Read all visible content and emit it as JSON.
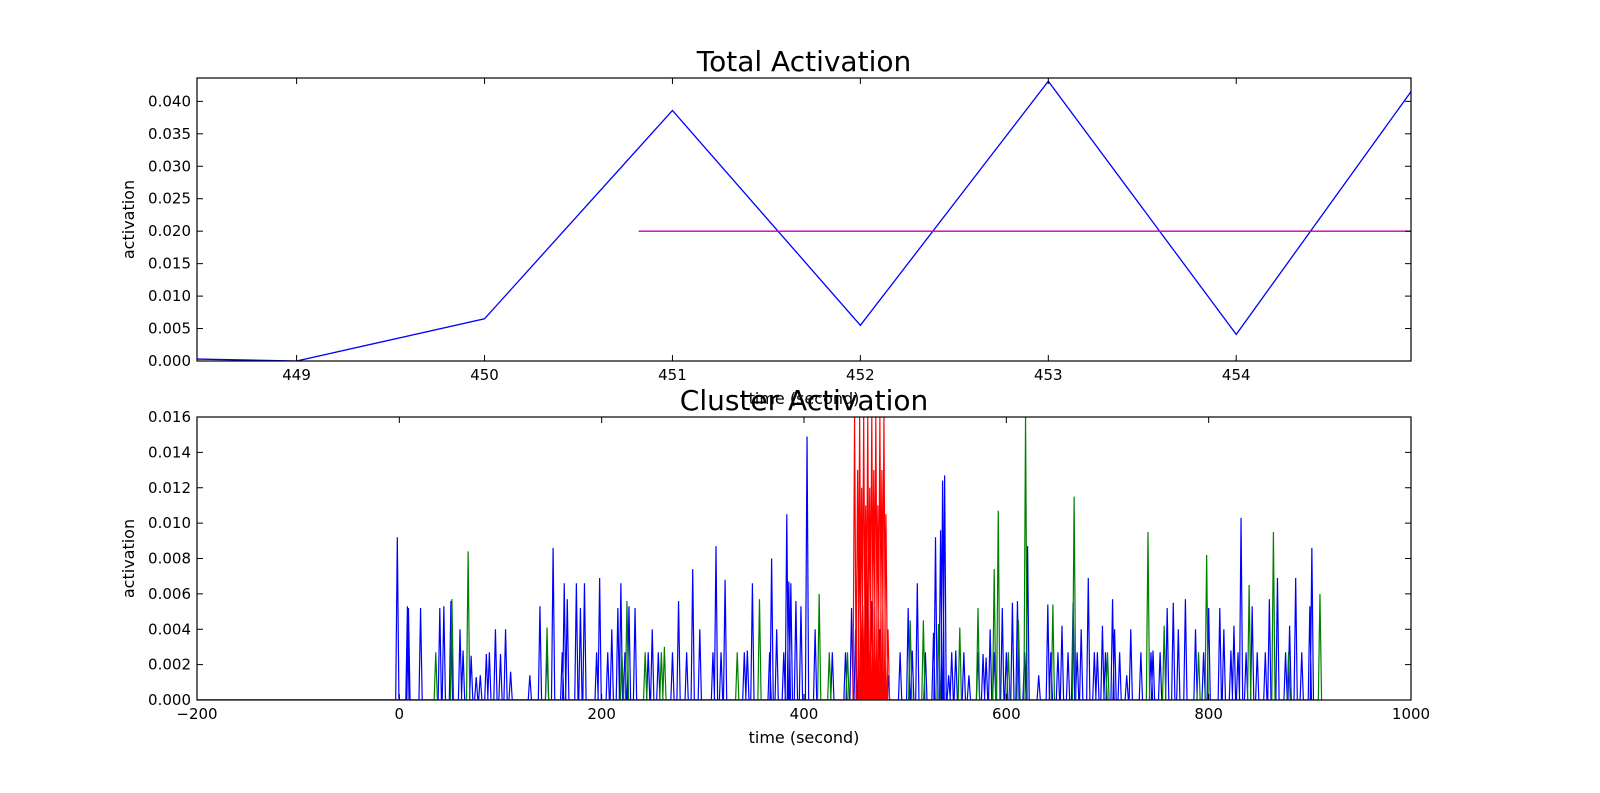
{
  "chart_data": [
    {
      "type": "line",
      "title": "Total Activation",
      "xlabel": "time (second)",
      "ylabel": "activation",
      "xlim": [
        448.47,
        454.93
      ],
      "ylim": [
        0,
        0.0436
      ],
      "x_ticks": [
        449,
        450,
        451,
        452,
        453,
        454
      ],
      "y_ticks": [
        0.0,
        0.005,
        0.01,
        0.015,
        0.02,
        0.025,
        0.03,
        0.035,
        0.04
      ],
      "y_tick_labels": [
        "0.000",
        "0.005",
        "0.010",
        "0.015",
        "0.020",
        "0.025",
        "0.030",
        "0.035",
        "0.040"
      ],
      "grid": false,
      "series": [
        {
          "color": "#0000ff",
          "x": [
            448.47,
            449,
            450,
            451,
            452,
            453,
            454,
            454.93
          ],
          "y": [
            0.0003,
            0.0,
            0.0065,
            0.0386,
            0.0055,
            0.0431,
            0.0041,
            0.0415
          ]
        },
        {
          "color": "#bf00bf",
          "x": [
            450.82,
            454.93
          ],
          "y": [
            0.02,
            0.02
          ]
        }
      ]
    },
    {
      "type": "line",
      "title": "Cluster Activation",
      "xlabel": "time (second)",
      "ylabel": "activation",
      "xlim": [
        -200,
        1000
      ],
      "ylim": [
        0,
        0.016
      ],
      "x_ticks": [
        -200,
        0,
        200,
        400,
        600,
        800,
        1000
      ],
      "x_tick_labels": [
        "−200",
        "0",
        "200",
        "400",
        "600",
        "800",
        "1000"
      ],
      "y_ticks": [
        0.0,
        0.002,
        0.004,
        0.006,
        0.008,
        0.01,
        0.012,
        0.014,
        0.016
      ],
      "y_tick_labels": [
        "0.000",
        "0.002",
        "0.004",
        "0.006",
        "0.008",
        "0.010",
        "0.012",
        "0.014",
        "0.016"
      ],
      "grid": false,
      "series": [
        {
          "color": "#0000ff",
          "spikes": [
            [
              -2,
              0.0092
            ],
            [
              8,
              0.0053
            ],
            [
              9,
              0.0052
            ],
            [
              21,
              0.0052
            ],
            [
              40,
              0.0052
            ],
            [
              44,
              0.0053
            ],
            [
              51,
              0.0056
            ],
            [
              60,
              0.004
            ],
            [
              63,
              0.0028
            ],
            [
              71,
              0.0025
            ],
            [
              76,
              0.0013
            ],
            [
              80,
              0.0014
            ],
            [
              86,
              0.0026
            ],
            [
              89,
              0.0027
            ],
            [
              95,
              0.004
            ],
            [
              100,
              0.0026
            ],
            [
              105,
              0.004
            ],
            [
              110,
              0.0016
            ],
            [
              129,
              0.0014
            ],
            [
              139,
              0.0053
            ],
            [
              146,
              0.0027
            ],
            [
              152,
              0.0086
            ],
            [
              161,
              0.0027
            ],
            [
              163,
              0.0066
            ],
            [
              166,
              0.0057
            ],
            [
              175,
              0.0066
            ],
            [
              179,
              0.0052
            ],
            [
              183,
              0.0066
            ],
            [
              195,
              0.0027
            ],
            [
              198,
              0.0069
            ],
            [
              206,
              0.0027
            ],
            [
              210,
              0.004
            ],
            [
              216,
              0.0052
            ],
            [
              219,
              0.0066
            ],
            [
              223,
              0.0027
            ],
            [
              227,
              0.0053
            ],
            [
              233,
              0.0052
            ],
            [
              246,
              0.0027
            ],
            [
              250,
              0.004
            ],
            [
              256,
              0.0027
            ],
            [
              270,
              0.0027
            ],
            [
              276,
              0.0056
            ],
            [
              284,
              0.0027
            ],
            [
              290,
              0.0074
            ],
            [
              297,
              0.004
            ],
            [
              310,
              0.0027
            ],
            [
              313,
              0.0087
            ],
            [
              318,
              0.0027
            ],
            [
              322,
              0.0068
            ],
            [
              341,
              0.0027
            ],
            [
              344,
              0.0028
            ],
            [
              349,
              0.0066
            ],
            [
              366,
              0.0027
            ],
            [
              368,
              0.008
            ],
            [
              373,
              0.004
            ],
            [
              380,
              0.0027
            ],
            [
              383,
              0.0105
            ],
            [
              385,
              0.0067
            ],
            [
              387,
              0.0066
            ],
            [
              392,
              0.0056
            ],
            [
              397,
              0.0053
            ],
            [
              403,
              0.0149
            ],
            [
              411,
              0.004
            ],
            [
              428,
              0.0027
            ],
            [
              441,
              0.0027
            ],
            [
              447,
              0.0052
            ],
            [
              451,
              0.004
            ],
            [
              455,
              0.0106
            ],
            [
              458,
              0.0053
            ],
            [
              462,
              0.0098
            ],
            [
              467,
              0.0056
            ],
            [
              470,
              0.0027
            ],
            [
              475,
              0.004
            ],
            [
              483,
              0.0014
            ],
            [
              495,
              0.0027
            ],
            [
              503,
              0.0052
            ],
            [
              507,
              0.0028
            ],
            [
              512,
              0.0066
            ],
            [
              520,
              0.0027
            ],
            [
              528,
              0.0038
            ],
            [
              530,
              0.0092
            ],
            [
              535,
              0.0096
            ],
            [
              537,
              0.0124
            ],
            [
              539,
              0.0127
            ],
            [
              543,
              0.0014
            ],
            [
              546,
              0.0027
            ],
            [
              550,
              0.0028
            ],
            [
              558,
              0.0027
            ],
            [
              563,
              0.0014
            ],
            [
              572,
              0.0027
            ],
            [
              577,
              0.0026
            ],
            [
              580,
              0.0024
            ],
            [
              584,
              0.004
            ],
            [
              588,
              0.0027
            ],
            [
              596,
              0.0052
            ],
            [
              600,
              0.0027
            ],
            [
              606,
              0.0055
            ],
            [
              611,
              0.0056
            ],
            [
              618,
              0.0027
            ],
            [
              621,
              0.0087
            ],
            [
              632,
              0.0014
            ],
            [
              641,
              0.0054
            ],
            [
              644,
              0.0027
            ],
            [
              651,
              0.0027
            ],
            [
              655,
              0.0042
            ],
            [
              661,
              0.0027
            ],
            [
              666,
              0.0055
            ],
            [
              670,
              0.0027
            ],
            [
              674,
              0.004
            ],
            [
              681,
              0.0069
            ],
            [
              687,
              0.0027
            ],
            [
              690,
              0.0027
            ],
            [
              695,
              0.0042
            ],
            [
              698,
              0.0027
            ],
            [
              705,
              0.0057
            ],
            [
              707,
              0.004
            ],
            [
              712,
              0.0027
            ],
            [
              719,
              0.0014
            ],
            [
              723,
              0.004
            ],
            [
              733,
              0.0027
            ],
            [
              743,
              0.0027
            ],
            [
              745,
              0.0028
            ],
            [
              752,
              0.0027
            ],
            [
              759,
              0.0052
            ],
            [
              765,
              0.0055
            ],
            [
              770,
              0.004
            ],
            [
              777,
              0.0057
            ],
            [
              787,
              0.004
            ],
            [
              795,
              0.0027
            ],
            [
              800,
              0.0052
            ],
            [
              811,
              0.0052
            ],
            [
              815,
              0.004
            ],
            [
              822,
              0.0028
            ],
            [
              825,
              0.0042
            ],
            [
              829,
              0.0027
            ],
            [
              832,
              0.0103
            ],
            [
              837,
              0.0027
            ],
            [
              843,
              0.0053
            ],
            [
              848,
              0.0027
            ],
            [
              856,
              0.0027
            ],
            [
              860,
              0.0057
            ],
            [
              868,
              0.0069
            ],
            [
              876,
              0.0027
            ],
            [
              880,
              0.0042
            ],
            [
              886,
              0.0069
            ],
            [
              892,
              0.0027
            ],
            [
              900,
              0.0053
            ],
            [
              902,
              0.0086
            ]
          ]
        },
        {
          "color": "#008000",
          "spikes": [
            [
              36,
              0.0027
            ],
            [
              52,
              0.0057
            ],
            [
              68,
              0.0084
            ],
            [
              146,
              0.0041
            ],
            [
              220,
              0.0027
            ],
            [
              225,
              0.0056
            ],
            [
              243,
              0.0027
            ],
            [
              259,
              0.0027
            ],
            [
              262,
              0.003
            ],
            [
              334,
              0.0027
            ],
            [
              356,
              0.0057
            ],
            [
              415,
              0.006
            ],
            [
              425,
              0.0027
            ],
            [
              443,
              0.0027
            ],
            [
              465,
              0.0027
            ],
            [
              505,
              0.0045
            ],
            [
              518,
              0.0045
            ],
            [
              533,
              0.0043
            ],
            [
              554,
              0.0041
            ],
            [
              572,
              0.0052
            ],
            [
              588,
              0.0074
            ],
            [
              592,
              0.0107
            ],
            [
              602,
              0.0027
            ],
            [
              612,
              0.0045
            ],
            [
              619,
              0.0161
            ],
            [
              646,
              0.0054
            ],
            [
              667,
              0.0115
            ],
            [
              700,
              0.0027
            ],
            [
              740,
              0.0095
            ],
            [
              756,
              0.0042
            ],
            [
              790,
              0.0027
            ],
            [
              798,
              0.0082
            ],
            [
              840,
              0.0065
            ],
            [
              864,
              0.0095
            ],
            [
              879,
              0.0027
            ],
            [
              910,
              0.006
            ]
          ]
        },
        {
          "color": "#ff0000",
          "spikes": [
            [
              450,
              0.016
            ],
            [
              453,
              0.013
            ],
            [
              455,
              0.016
            ],
            [
              457,
              0.012
            ],
            [
              459,
              0.016
            ],
            [
              461,
              0.011
            ],
            [
              463,
              0.016
            ],
            [
              465,
              0.012
            ],
            [
              467,
              0.016
            ],
            [
              469,
              0.013
            ],
            [
              471,
              0.016
            ],
            [
              473,
              0.011
            ],
            [
              475,
              0.016
            ],
            [
              477,
              0.013
            ],
            [
              479,
              0.016
            ],
            [
              481,
              0.0105
            ],
            [
              483,
              0.004
            ]
          ]
        }
      ]
    }
  ]
}
